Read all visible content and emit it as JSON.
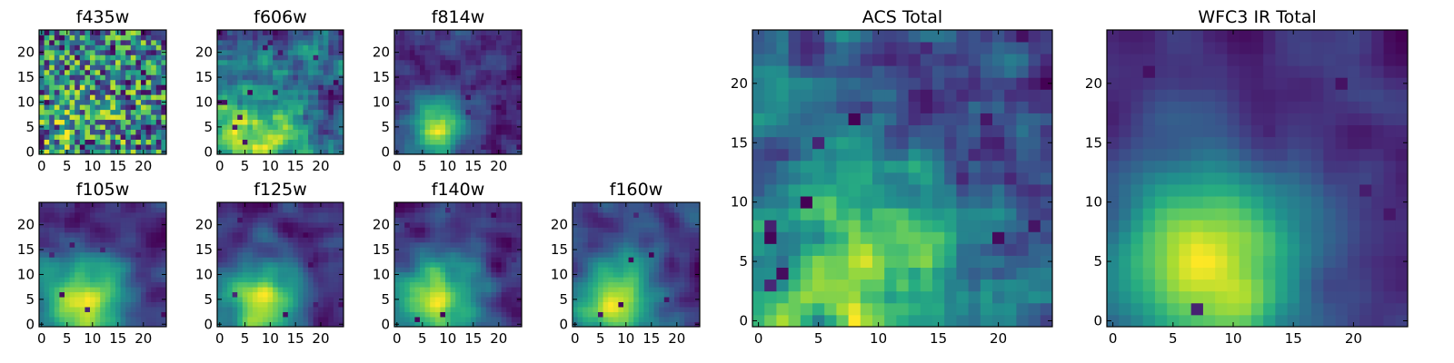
{
  "chart_data": [
    {
      "type": "heatmap",
      "title": "f435w",
      "x_ticks": [
        "0",
        "5",
        "10",
        "15",
        "20"
      ],
      "y_ticks": [
        "0",
        "5",
        "10",
        "15",
        "20"
      ],
      "grid_size": 25,
      "xlim": [
        -0.5,
        24.5
      ],
      "ylim": [
        -0.5,
        24.5
      ],
      "colormap": "viridis",
      "style": "noise"
    },
    {
      "type": "heatmap",
      "title": "f606w",
      "x_ticks": [
        "0",
        "5",
        "10",
        "15",
        "20"
      ],
      "y_ticks": [
        "0",
        "5",
        "10",
        "15",
        "20"
      ],
      "grid_size": 25,
      "xlim": [
        -0.5,
        24.5
      ],
      "ylim": [
        -0.5,
        24.5
      ],
      "colormap": "viridis",
      "style": "soft-center"
    },
    {
      "type": "heatmap",
      "title": "f814w",
      "x_ticks": [
        "0",
        "5",
        "10",
        "15",
        "20"
      ],
      "y_ticks": [
        "0",
        "5",
        "10",
        "15",
        "20"
      ],
      "grid_size": 25,
      "xlim": [
        -0.5,
        24.5
      ],
      "ylim": [
        -0.5,
        24.5
      ],
      "colormap": "viridis",
      "style": "blob"
    },
    {
      "type": "heatmap",
      "title": "f105w",
      "x_ticks": [
        "0",
        "5",
        "10",
        "15",
        "20"
      ],
      "y_ticks": [
        "0",
        "5",
        "10",
        "15",
        "20"
      ],
      "grid_size": 25,
      "xlim": [
        -0.5,
        24.5
      ],
      "ylim": [
        -0.5,
        24.5
      ],
      "colormap": "viridis",
      "style": "smooth"
    },
    {
      "type": "heatmap",
      "title": "f125w",
      "x_ticks": [
        "0",
        "5",
        "10",
        "15",
        "20"
      ],
      "y_ticks": [
        "0",
        "5",
        "10",
        "15",
        "20"
      ],
      "grid_size": 25,
      "xlim": [
        -0.5,
        24.5
      ],
      "ylim": [
        -0.5,
        24.5
      ],
      "colormap": "viridis",
      "style": "smooth"
    },
    {
      "type": "heatmap",
      "title": "f140w",
      "x_ticks": [
        "0",
        "5",
        "10",
        "15",
        "20"
      ],
      "y_ticks": [
        "0",
        "5",
        "10",
        "15",
        "20"
      ],
      "grid_size": 25,
      "xlim": [
        -0.5,
        24.5
      ],
      "ylim": [
        -0.5,
        24.5
      ],
      "colormap": "viridis",
      "style": "smooth"
    },
    {
      "type": "heatmap",
      "title": "f160w",
      "x_ticks": [
        "0",
        "5",
        "10",
        "15",
        "20"
      ],
      "y_ticks": [
        "0",
        "5",
        "10",
        "15",
        "20"
      ],
      "grid_size": 25,
      "xlim": [
        -0.5,
        24.5
      ],
      "ylim": [
        -0.5,
        24.5
      ],
      "colormap": "viridis",
      "style": "smooth"
    },
    {
      "type": "heatmap",
      "title": "ACS Total",
      "x_ticks": [
        "0",
        "5",
        "10",
        "15",
        "20"
      ],
      "y_ticks": [
        "0",
        "5",
        "10",
        "15",
        "20"
      ],
      "grid_size": 25,
      "xlim": [
        -0.5,
        24.5
      ],
      "ylim": [
        -0.5,
        24.5
      ],
      "colormap": "viridis",
      "style": "soft-center"
    },
    {
      "type": "heatmap",
      "title": "WFC3 IR Total",
      "x_ticks": [
        "0",
        "5",
        "10",
        "15",
        "20"
      ],
      "y_ticks": [
        "0",
        "5",
        "10",
        "15",
        "20"
      ],
      "grid_size": 25,
      "xlim": [
        -0.5,
        24.5
      ],
      "ylim": [
        -0.5,
        24.5
      ],
      "colormap": "viridis",
      "style": "smooth-strong"
    }
  ]
}
